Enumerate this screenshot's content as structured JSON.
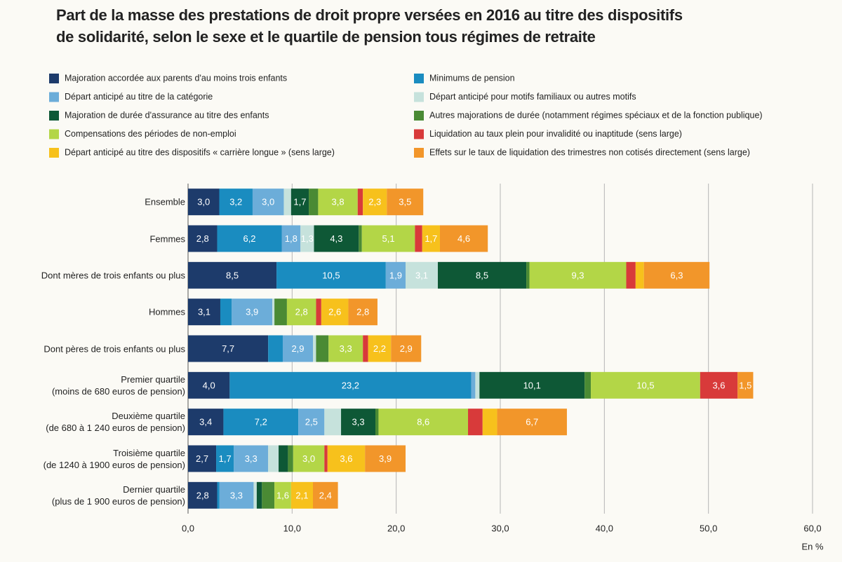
{
  "chart_data": {
    "type": "stacked-bar-horizontal",
    "title": "Part de la masse des prestations de droit propre versées en 2016 au titre des dispositifs\nde solidarité, selon le sexe et le quartile de pension tous régimes de retraite",
    "x_axis_label": "En %",
    "categories": [
      "Ensemble",
      "Femmes",
      "Dont mères de trois enfants ou plus",
      "Hommes",
      "Dont pères de trois enfants ou plus",
      "Premier quartile\n(moins de 680 euros de pension)",
      "Deuxième quartile\n(de 680 à 1 240 euros de pension)",
      "Troisième quartile\n(de 1240 à 1900 euros de pension)",
      "Dernier quartile\n(plus de 1 900 euros de pension)"
    ],
    "xlim": [
      0,
      60
    ],
    "xticks": [
      {
        "value": 0,
        "label": "0,0"
      },
      {
        "value": 10,
        "label": "10,0"
      },
      {
        "value": 20,
        "label": "20,0"
      },
      {
        "value": 30,
        "label": "30,0"
      },
      {
        "value": 40,
        "label": "40,0"
      },
      {
        "value": 50,
        "label": "50,0"
      },
      {
        "value": 60,
        "label": "60,0"
      }
    ],
    "grid": true,
    "series": [
      {
        "name": "Majoration accordée aux parents d'au moins trois enfants",
        "color": "#1d3b6b",
        "values": [
          3.0,
          2.8,
          8.5,
          3.1,
          7.7,
          4.0,
          3.4,
          2.7,
          2.8
        ],
        "value_labels": [
          "3,0",
          "2,8",
          "8,5",
          "3,1",
          "7,7",
          "4,0",
          "3,4",
          "2,7",
          "2,8"
        ]
      },
      {
        "name": "Minimums de pension",
        "color": "#1a8cc0",
        "values": [
          3.2,
          6.2,
          10.5,
          1.1,
          1.4,
          23.2,
          7.2,
          1.7,
          0.2
        ],
        "value_labels": [
          "3,2",
          "6,2",
          "10,5",
          null,
          null,
          "23,2",
          "7,2",
          "1,7",
          null
        ]
      },
      {
        "name": "Départ anticipé au titre de la catégorie",
        "color": "#6cadd9",
        "values": [
          3.0,
          1.8,
          1.9,
          3.9,
          2.9,
          0.4,
          2.5,
          3.3,
          3.3
        ],
        "value_labels": [
          "3,0",
          "1,8",
          "1,9",
          "3,9",
          "2,9",
          null,
          "2,5",
          "3,3",
          "3,3"
        ]
      },
      {
        "name": "Départ anticipé pour motifs familiaux ou autres motifs",
        "color": "#c6e2dc",
        "values": [
          0.7,
          1.3,
          3.1,
          0.2,
          0.3,
          0.4,
          1.6,
          1.0,
          0.3
        ],
        "value_labels": [
          null,
          "1,3",
          "3,1",
          null,
          null,
          null,
          null,
          null,
          null
        ]
      },
      {
        "name": "Majoration de durée d'assurance au titre des enfants",
        "color": "#0e5836",
        "values": [
          1.7,
          4.3,
          8.5,
          0.0,
          0.0,
          10.1,
          3.3,
          0.9,
          0.5
        ],
        "value_labels": [
          "1,7",
          "4,3",
          "8,5",
          null,
          null,
          "10,1",
          "3,3",
          null,
          null
        ]
      },
      {
        "name": "Autres majorations de durée (notamment régimes spéciaux et de la fonction publique)",
        "color": "#4a8a34",
        "values": [
          0.9,
          0.3,
          0.3,
          1.2,
          1.2,
          0.6,
          0.3,
          0.5,
          1.2
        ],
        "value_labels": [
          null,
          null,
          null,
          null,
          null,
          null,
          null,
          null,
          null
        ]
      },
      {
        "name": "Compensations des périodes de non-emploi",
        "color": "#b3d647",
        "values": [
          3.8,
          5.1,
          9.3,
          2.8,
          3.3,
          10.5,
          8.6,
          3.0,
          1.6
        ],
        "value_labels": [
          "3,8",
          "5,1",
          "9,3",
          "2,8",
          "3,3",
          "10,5",
          "8,6",
          "3,0",
          "1,6"
        ]
      },
      {
        "name": "Liquidation au taux plein pour invalidité ou inaptitude (sens large)",
        "color": "#d83a3a",
        "values": [
          0.5,
          0.7,
          0.9,
          0.5,
          0.5,
          3.6,
          1.4,
          0.3,
          0.0
        ],
        "value_labels": [
          null,
          null,
          null,
          null,
          null,
          "3,6",
          null,
          null,
          null
        ]
      },
      {
        "name": "Départ anticipé au titre des dispositifs « carrière longue » (sens large)",
        "color": "#f7c11c",
        "values": [
          2.3,
          1.7,
          0.8,
          2.6,
          2.2,
          0.0,
          1.4,
          3.6,
          2.1
        ],
        "value_labels": [
          "2,3",
          "1,7",
          null,
          "2,6",
          "2,2",
          null,
          null,
          "3,6",
          "2,1"
        ]
      },
      {
        "name": "Effets sur le taux de liquidation des trimestres non cotisés directement (sens large)",
        "color": "#f2962a",
        "values": [
          3.5,
          4.6,
          6.3,
          2.8,
          2.9,
          1.5,
          6.7,
          3.9,
          2.4
        ],
        "value_labels": [
          "3,5",
          "4,6",
          "6,3",
          "2,8",
          "2,9",
          "1,5",
          "6,7",
          "3,9",
          "2,4"
        ]
      }
    ]
  }
}
